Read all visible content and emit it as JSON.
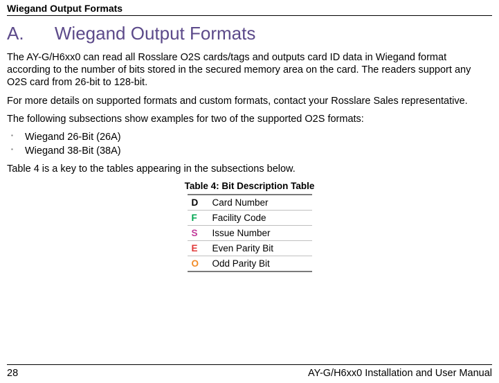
{
  "header": {
    "running_title": "Wiegand Output Formats"
  },
  "appendix": {
    "letter": "A.",
    "title": "Wiegand Output Formats"
  },
  "paragraphs": {
    "p1": "The AY-G/H6xx0 can read all Rosslare O2S cards/tags and outputs card ID data in Wiegand format according to the number of bits stored in the secured memory area on the card. The readers support any O2S card from 26-bit to 128-bit.",
    "p2": "For more details on supported formats and custom formats, contact your Rosslare Sales representative.",
    "p3": "The following subsections show examples for two of the supported O2S formats:",
    "p4": "Table 4 is a key to the tables appearing in the subsections below."
  },
  "bullets": {
    "b1": "Wiegand 26-Bit (26A)",
    "b2": "Wiegand 38-Bit (38A)"
  },
  "table": {
    "caption": "Table 4: Bit Description Table",
    "rows": [
      {
        "code": "D",
        "color": "#000000",
        "desc": "Card Number"
      },
      {
        "code": "F",
        "color": "#00a651",
        "desc": "Facility Code"
      },
      {
        "code": "S",
        "color": "#c23b9a",
        "desc": "Issue Number"
      },
      {
        "code": "E",
        "color": "#e03a3a",
        "desc": "Even Parity Bit"
      },
      {
        "code": "O",
        "color": "#f28c28",
        "desc": "Odd Parity Bit"
      }
    ]
  },
  "footer": {
    "page_number": "28",
    "doc_title": "AY-G/H6xx0 Installation and User Manual"
  }
}
